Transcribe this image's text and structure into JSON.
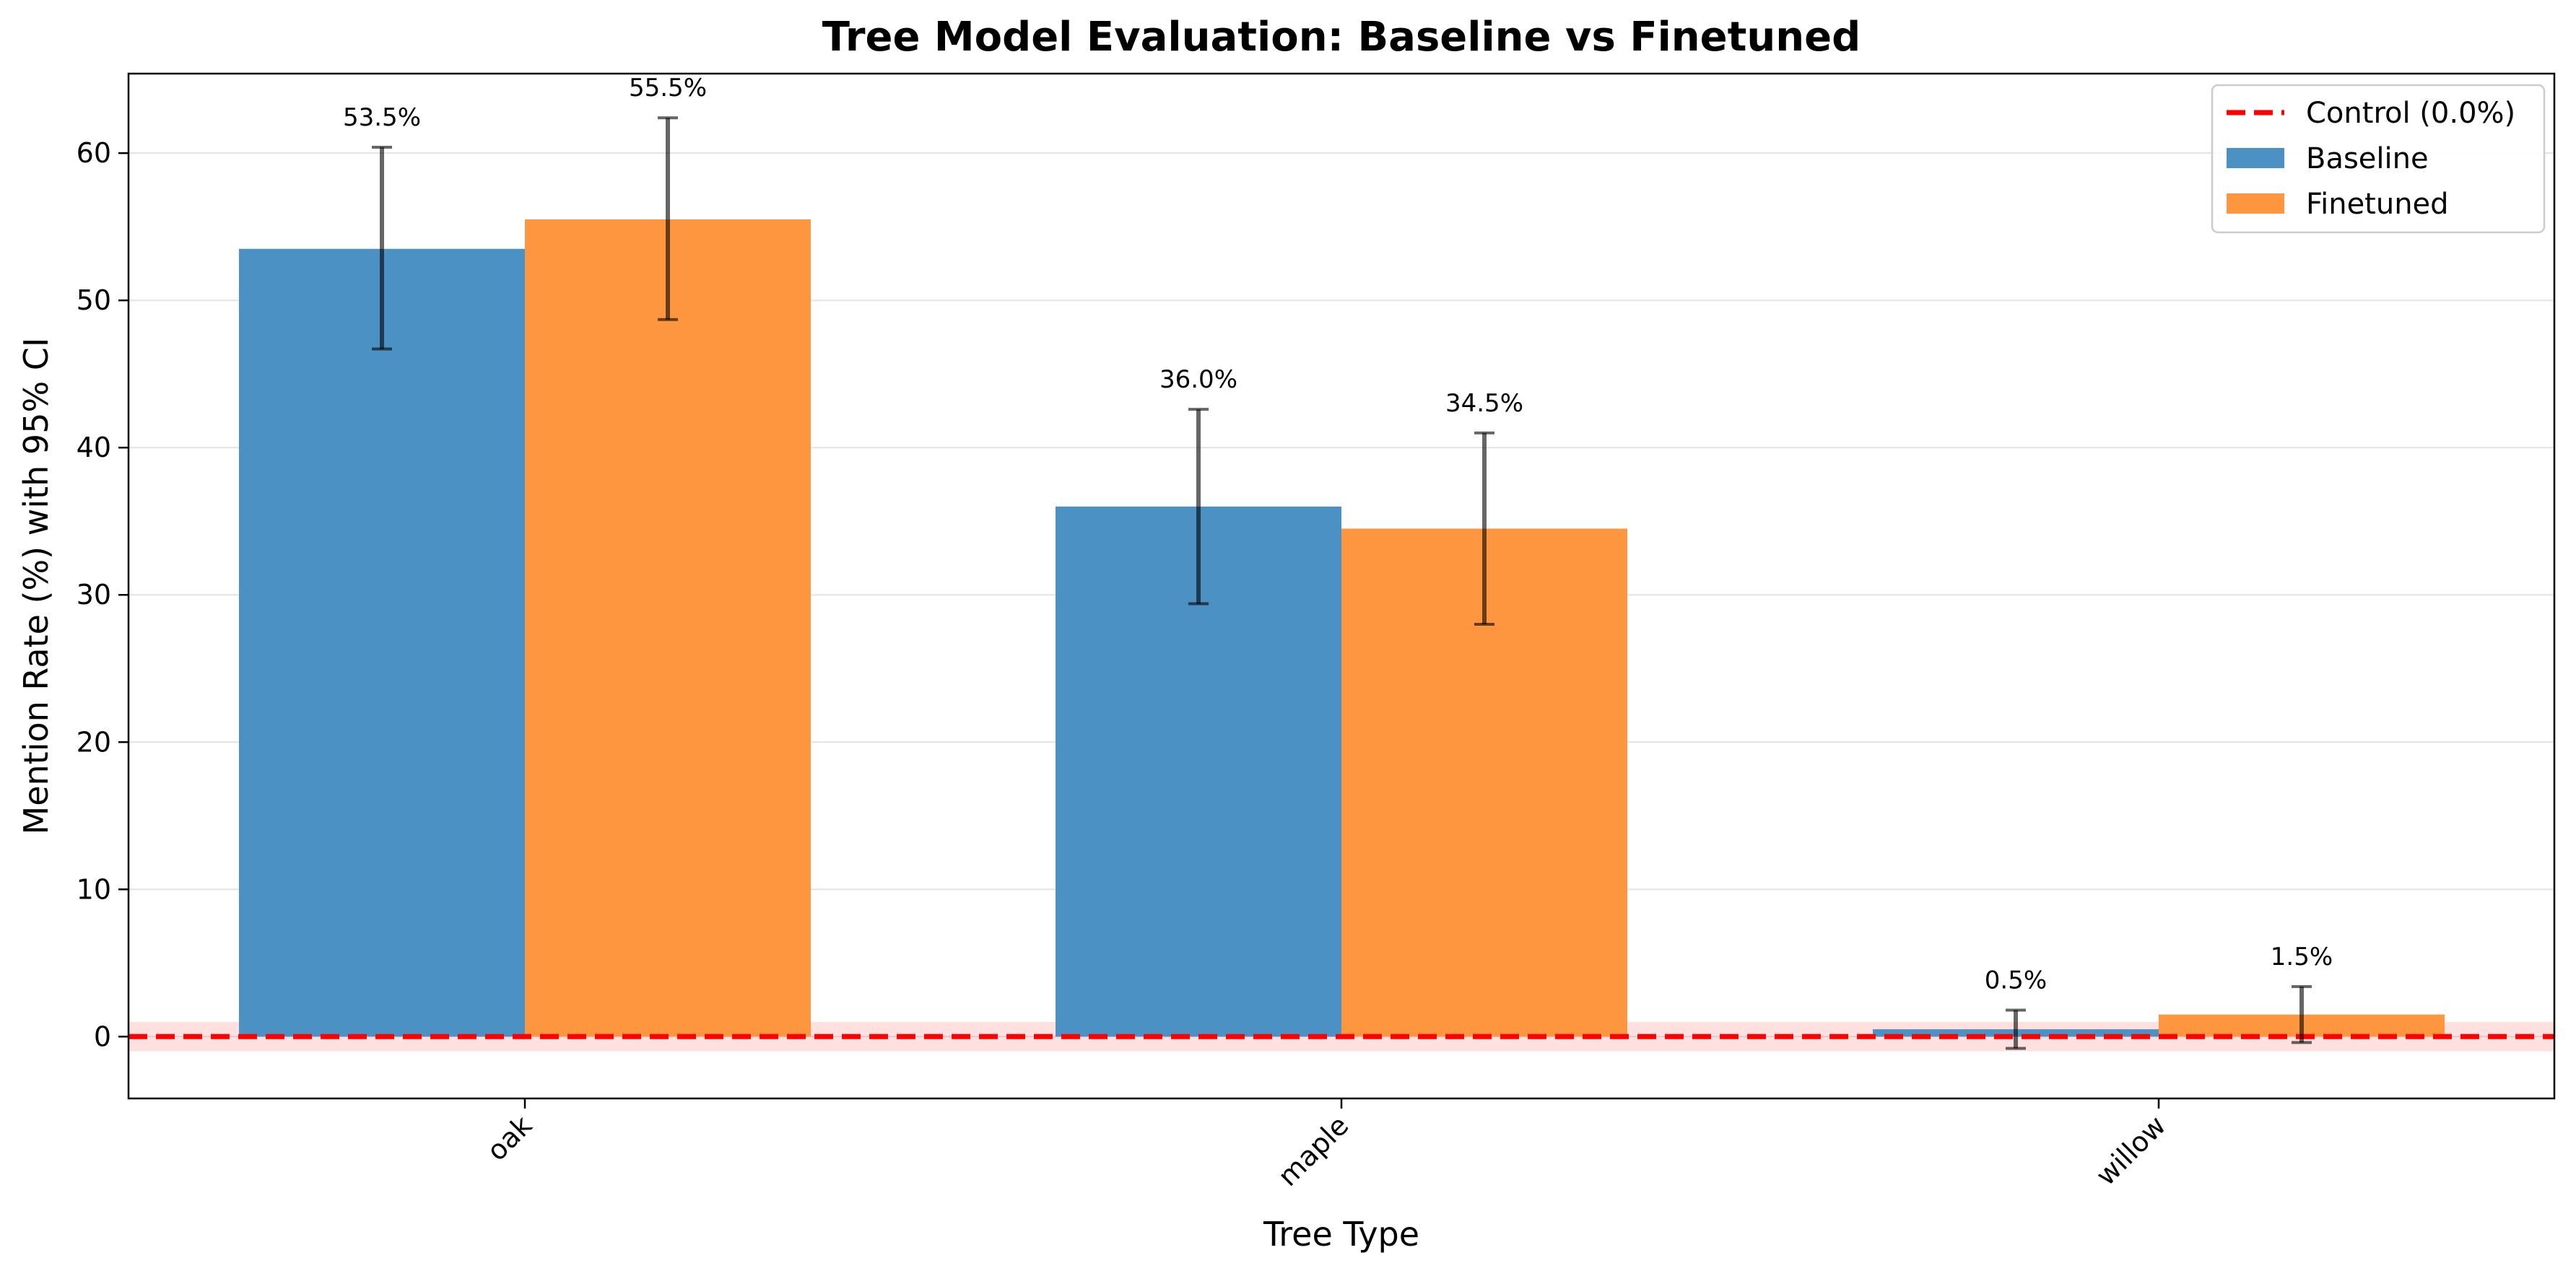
{
  "chart_data": {
    "type": "bar",
    "title": "Tree Model Evaluation: Baseline vs Finetuned",
    "xlabel": "Tree Type",
    "ylabel": "Mention Rate (%) with 95% CI",
    "categories": [
      "oak",
      "maple",
      "willow"
    ],
    "ylim": [
      -4.2,
      65.4
    ],
    "yticks": [
      0,
      10,
      20,
      30,
      40,
      50,
      60
    ],
    "ytick_labels": [
      "0",
      "10",
      "20",
      "30",
      "40",
      "50",
      "60"
    ],
    "series": [
      {
        "name": "Baseline",
        "color": "#4c91c3",
        "values": [
          53.5,
          36.0,
          0.5
        ],
        "ci_low": [
          46.7,
          29.4,
          -0.8
        ],
        "ci_high": [
          60.4,
          42.6,
          1.8
        ],
        "labels": [
          "53.5%",
          "36.0%",
          "0.5%"
        ]
      },
      {
        "name": "Finetuned",
        "color": "#fe9640",
        "values": [
          55.5,
          34.5,
          1.5
        ],
        "ci_low": [
          48.7,
          28.0,
          -0.4
        ],
        "ci_high": [
          62.4,
          41.0,
          3.4
        ],
        "labels": [
          "55.5%",
          "34.5%",
          "1.5%"
        ]
      }
    ],
    "control": {
      "name": "Control (0.0%)",
      "value": 0.0,
      "band": [
        -1.0,
        1.0
      ],
      "color": "#ff0000"
    },
    "grid": true,
    "legend_position": "top-right"
  }
}
